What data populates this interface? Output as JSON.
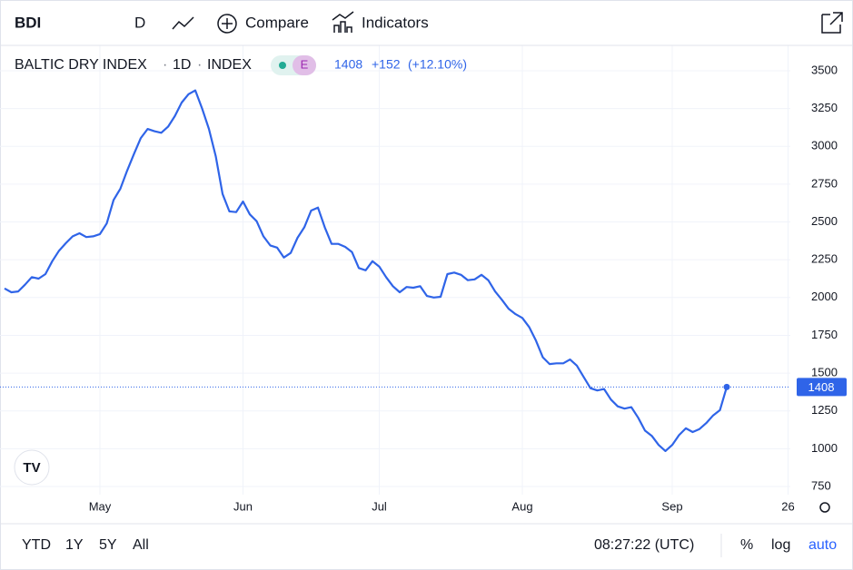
{
  "toolbar": {
    "symbol": "BDI",
    "interval": "D",
    "compare": "Compare",
    "indicators": "Indicators"
  },
  "legend": {
    "name": "BALTIC DRY INDEX",
    "interval": "1D",
    "exchange": "INDEX",
    "badge": "E",
    "change": "+152",
    "change_pct": "(+12.10%)"
  },
  "bottom_bar": {
    "ranges": [
      "YTD",
      "1Y",
      "5Y",
      "All"
    ],
    "clock": "08:27:22 (UTC)",
    "options": [
      "%",
      "log",
      "auto"
    ]
  },
  "chart_data": {
    "type": "line",
    "color": "#2f64e8",
    "categories": [
      null,
      null,
      null,
      null,
      null,
      null,
      null,
      null,
      null,
      null,
      null,
      null,
      null,
      null,
      "May",
      null,
      null,
      null,
      null,
      null,
      null,
      null,
      null,
      null,
      null,
      null,
      null,
      null,
      null,
      null,
      null,
      null,
      null,
      null,
      null,
      "Jun",
      null,
      null,
      null,
      null,
      null,
      null,
      null,
      null,
      null,
      null,
      null,
      null,
      null,
      null,
      null,
      null,
      null,
      null,
      null,
      "Jul",
      null,
      null,
      null,
      null,
      null,
      null,
      null,
      null,
      null,
      null,
      null,
      null,
      null,
      null,
      null,
      null,
      null,
      null,
      null,
      null,
      "Aug",
      null,
      null,
      null,
      null,
      null,
      null,
      null,
      null,
      null,
      null,
      null,
      null,
      null,
      null,
      null,
      null,
      null,
      null,
      null,
      null,
      null,
      "Sep",
      null,
      null,
      null,
      null,
      null,
      null,
      null,
      null,
      null,
      null,
      null,
      null,
      null,
      null,
      null,
      null,
      "26"
    ],
    "values": [
      2060,
      2035,
      2040,
      2085,
      2135,
      2125,
      2155,
      2240,
      2310,
      2360,
      2405,
      2425,
      2400,
      2405,
      2420,
      2490,
      2645,
      2720,
      2840,
      2950,
      3055,
      3115,
      3100,
      3090,
      3130,
      3200,
      3290,
      3345,
      3370,
      3250,
      3115,
      2935,
      2685,
      2570,
      2565,
      2635,
      2550,
      2505,
      2405,
      2345,
      2330,
      2265,
      2295,
      2395,
      2465,
      2575,
      2595,
      2465,
      2355,
      2355,
      2335,
      2300,
      2195,
      2180,
      2240,
      2205,
      2135,
      2075,
      2035,
      2070,
      2065,
      2075,
      2010,
      2000,
      2005,
      2155,
      2165,
      2150,
      2115,
      2120,
      2150,
      2115,
      2040,
      1985,
      1925,
      1890,
      1865,
      1805,
      1715,
      1605,
      1560,
      1565,
      1565,
      1590,
      1550,
      1475,
      1400,
      1385,
      1395,
      1325,
      1280,
      1265,
      1275,
      1205,
      1120,
      1085,
      1025,
      985,
      1025,
      1090,
      1135,
      1110,
      1130,
      1170,
      1220,
      1255,
      1408,
      null,
      null,
      null,
      null,
      null,
      null,
      null,
      null,
      null
    ],
    "ylim": [
      726,
      3668
    ],
    "yticks": [
      750,
      1000,
      1250,
      1500,
      1750,
      2000,
      2250,
      2500,
      2750,
      3000,
      3250,
      3500
    ],
    "grid": true
  }
}
